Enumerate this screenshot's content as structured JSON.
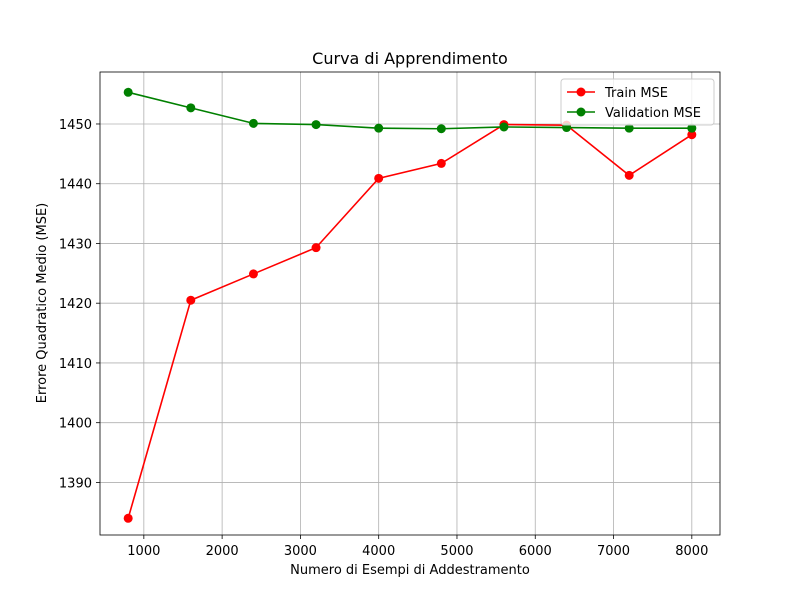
{
  "chart_data": {
    "type": "line",
    "title": "Curva di Apprendimento",
    "xlabel": "Numero di Esempi di Addestramento",
    "ylabel": "Errore Quadratico Medio (MSE)",
    "xlim": [
      440,
      8360
    ],
    "ylim": [
      1381.2,
      1458.7
    ],
    "xticks": [
      1000,
      2000,
      3000,
      4000,
      5000,
      6000,
      7000,
      8000
    ],
    "yticks": [
      1390,
      1400,
      1410,
      1420,
      1430,
      1440,
      1450
    ],
    "grid": true,
    "legend_position": "top-right",
    "x": [
      800,
      1600,
      2400,
      3200,
      4000,
      4800,
      5600,
      6400,
      7200,
      8000
    ],
    "series": [
      {
        "name": "Train MSE",
        "color": "#ff0000",
        "marker": "circle",
        "values": [
          1384.0,
          1420.5,
          1424.9,
          1429.3,
          1440.9,
          1443.4,
          1449.9,
          1449.8,
          1441.4,
          1448.2
        ]
      },
      {
        "name": "Validation MSE",
        "color": "#008000",
        "marker": "circle",
        "values": [
          1455.3,
          1452.7,
          1450.1,
          1449.9,
          1449.3,
          1449.2,
          1449.5,
          1449.4,
          1449.3,
          1449.3
        ]
      }
    ]
  }
}
